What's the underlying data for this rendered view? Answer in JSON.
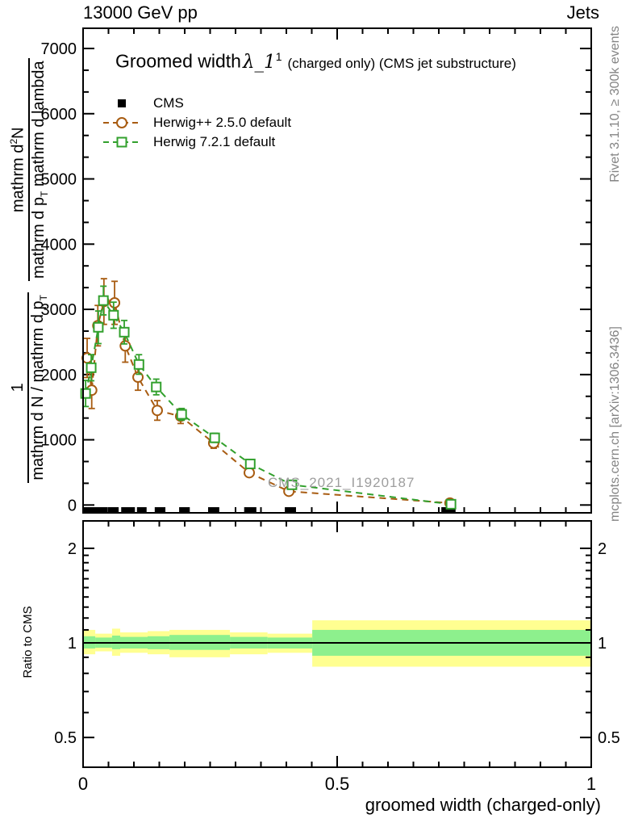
{
  "header": {
    "left_label": "13000 GeV pp",
    "right_label": "Jets"
  },
  "title": {
    "main": "Groomed width",
    "lambda": "λ_1",
    "sup": "1",
    "suffix": "(charged only) (CMS jet substructure)"
  },
  "watermark": "CMS_2021_I1920187",
  "yaxis_label": {
    "f1_num": "1",
    "f1_den": "mathrm d N / mathrm d p",
    "f1_den_sub": "T",
    "f2_num_a": "mathrm d",
    "f2_num_sup": "2",
    "f2_num_b": "N",
    "f2_den_a": "mathrm d p",
    "f2_den_sub": "T",
    "f2_den_b": " mathrm d lambda"
  },
  "legend": {
    "items": [
      {
        "label": "CMS",
        "marker": "filled-square",
        "color": "#000000"
      },
      {
        "label": "Herwig++ 2.5.0 default",
        "marker": "dashed-circle",
        "color": "#a85c12"
      },
      {
        "label": "Herwig 7.2.1 default",
        "marker": "dashed-square",
        "color": "#32a02d"
      }
    ]
  },
  "ratio_panel": {
    "label": "Ratio to CMS"
  },
  "side_notes": {
    "top": "Rivet 3.1.10, ≥ 300k events",
    "bottom": "mcplots.cern.ch [arXiv:1306.3436]"
  },
  "xaxis": {
    "title": "groomed width (charged-only)"
  },
  "chart_data": {
    "type": "line",
    "title": "Groomed width λ_1^1 (charged only) (CMS jet substructure)",
    "xlabel": "groomed width (charged-only)",
    "ylabel": "1/(dN/dp_T) d^2N/(dp_T dlambda)",
    "xlim": [
      0,
      1
    ],
    "ylim": [
      -120,
      7310
    ],
    "x_major_ticks": [
      0,
      0.5,
      1
    ],
    "x_major_labels": [
      "0",
      "0.5",
      "1"
    ],
    "x_minor_step": 0.05,
    "y_major_step": 1000,
    "y_major_max": 7000,
    "grid": false,
    "legend_position": "top-left",
    "series": [
      {
        "name": "Herwig++ 2.5.0 default",
        "color": "#a85c12",
        "marker": "circle",
        "x": [
          0.008,
          0.017,
          0.029,
          0.041,
          0.062,
          0.083,
          0.108,
          0.146,
          0.192,
          0.257,
          0.327,
          0.405,
          0.722
        ],
        "y": [
          2255,
          1760,
          2750,
          3120,
          3100,
          2440,
          1960,
          1450,
          1360,
          950,
          495,
          210,
          30
        ],
        "yerr": [
          300,
          280,
          310,
          350,
          330,
          250,
          200,
          150,
          110,
          80,
          60,
          40,
          15
        ]
      },
      {
        "name": "Herwig 7.2.1 default",
        "color": "#32a02d",
        "marker": "square",
        "x": [
          0.005,
          0.016,
          0.03,
          0.04,
          0.06,
          0.081,
          0.11,
          0.144,
          0.194,
          0.259,
          0.329,
          0.411,
          0.724
        ],
        "y": [
          1710,
          2105,
          2725,
          3135,
          2910,
          2650,
          2155,
          1810,
          1390,
          1030,
          630,
          310,
          12
        ],
        "yerr": [
          200,
          200,
          250,
          220,
          200,
          180,
          150,
          120,
          90,
          70,
          50,
          30,
          10
        ]
      }
    ],
    "cms_bins": [
      [
        0,
        0.048
      ],
      [
        0.051,
        0.07
      ],
      [
        0.075,
        0.102
      ],
      [
        0.106,
        0.125
      ],
      [
        0.141,
        0.162
      ],
      [
        0.189,
        0.21
      ],
      [
        0.246,
        0.268
      ],
      [
        0.317,
        0.341
      ],
      [
        0.397,
        0.419
      ],
      [
        0.705,
        0.733
      ]
    ],
    "ratio": {
      "scale": "log",
      "ylim": [
        0.402,
        2.445
      ],
      "y_major_ticks": [
        0.5,
        1,
        2
      ],
      "y_major_labels": [
        "0.5",
        "1",
        "2"
      ],
      "y_minor_ticks": [
        0.6,
        0.7,
        0.8,
        0.9,
        1.1,
        1.2,
        1.3,
        1.4,
        1.5,
        1.6,
        1.7,
        1.8,
        1.9
      ],
      "line_y": 1,
      "band_colors": {
        "outer": "#ffff91",
        "inner": "#8df08d"
      },
      "bands": [
        {
          "x0": 0.0,
          "x1": 0.024,
          "y_lo": 0.92,
          "y_hi": 1.1,
          "g_lo": 0.96,
          "g_hi": 1.05
        },
        {
          "x0": 0.024,
          "x1": 0.057,
          "y_lo": 0.94,
          "y_hi": 1.07,
          "g_lo": 0.965,
          "g_hi": 1.04
        },
        {
          "x0": 0.057,
          "x1": 0.073,
          "y_lo": 0.91,
          "y_hi": 1.11,
          "g_lo": 0.955,
          "g_hi": 1.055
        },
        {
          "x0": 0.073,
          "x1": 0.127,
          "y_lo": 0.93,
          "y_hi": 1.08,
          "g_lo": 0.96,
          "g_hi": 1.045
        },
        {
          "x0": 0.127,
          "x1": 0.17,
          "y_lo": 0.92,
          "y_hi": 1.09,
          "g_lo": 0.955,
          "g_hi": 1.05
        },
        {
          "x0": 0.17,
          "x1": 0.289,
          "y_lo": 0.9,
          "y_hi": 1.1,
          "g_lo": 0.95,
          "g_hi": 1.06
        },
        {
          "x0": 0.289,
          "x1": 0.363,
          "y_lo": 0.92,
          "y_hi": 1.08,
          "g_lo": 0.96,
          "g_hi": 1.045
        },
        {
          "x0": 0.363,
          "x1": 0.451,
          "y_lo": 0.93,
          "y_hi": 1.07,
          "g_lo": 0.96,
          "g_hi": 1.04
        },
        {
          "x0": 0.451,
          "x1": 1.0,
          "y_lo": 0.84,
          "y_hi": 1.18,
          "g_lo": 0.91,
          "g_hi": 1.1
        }
      ]
    }
  }
}
